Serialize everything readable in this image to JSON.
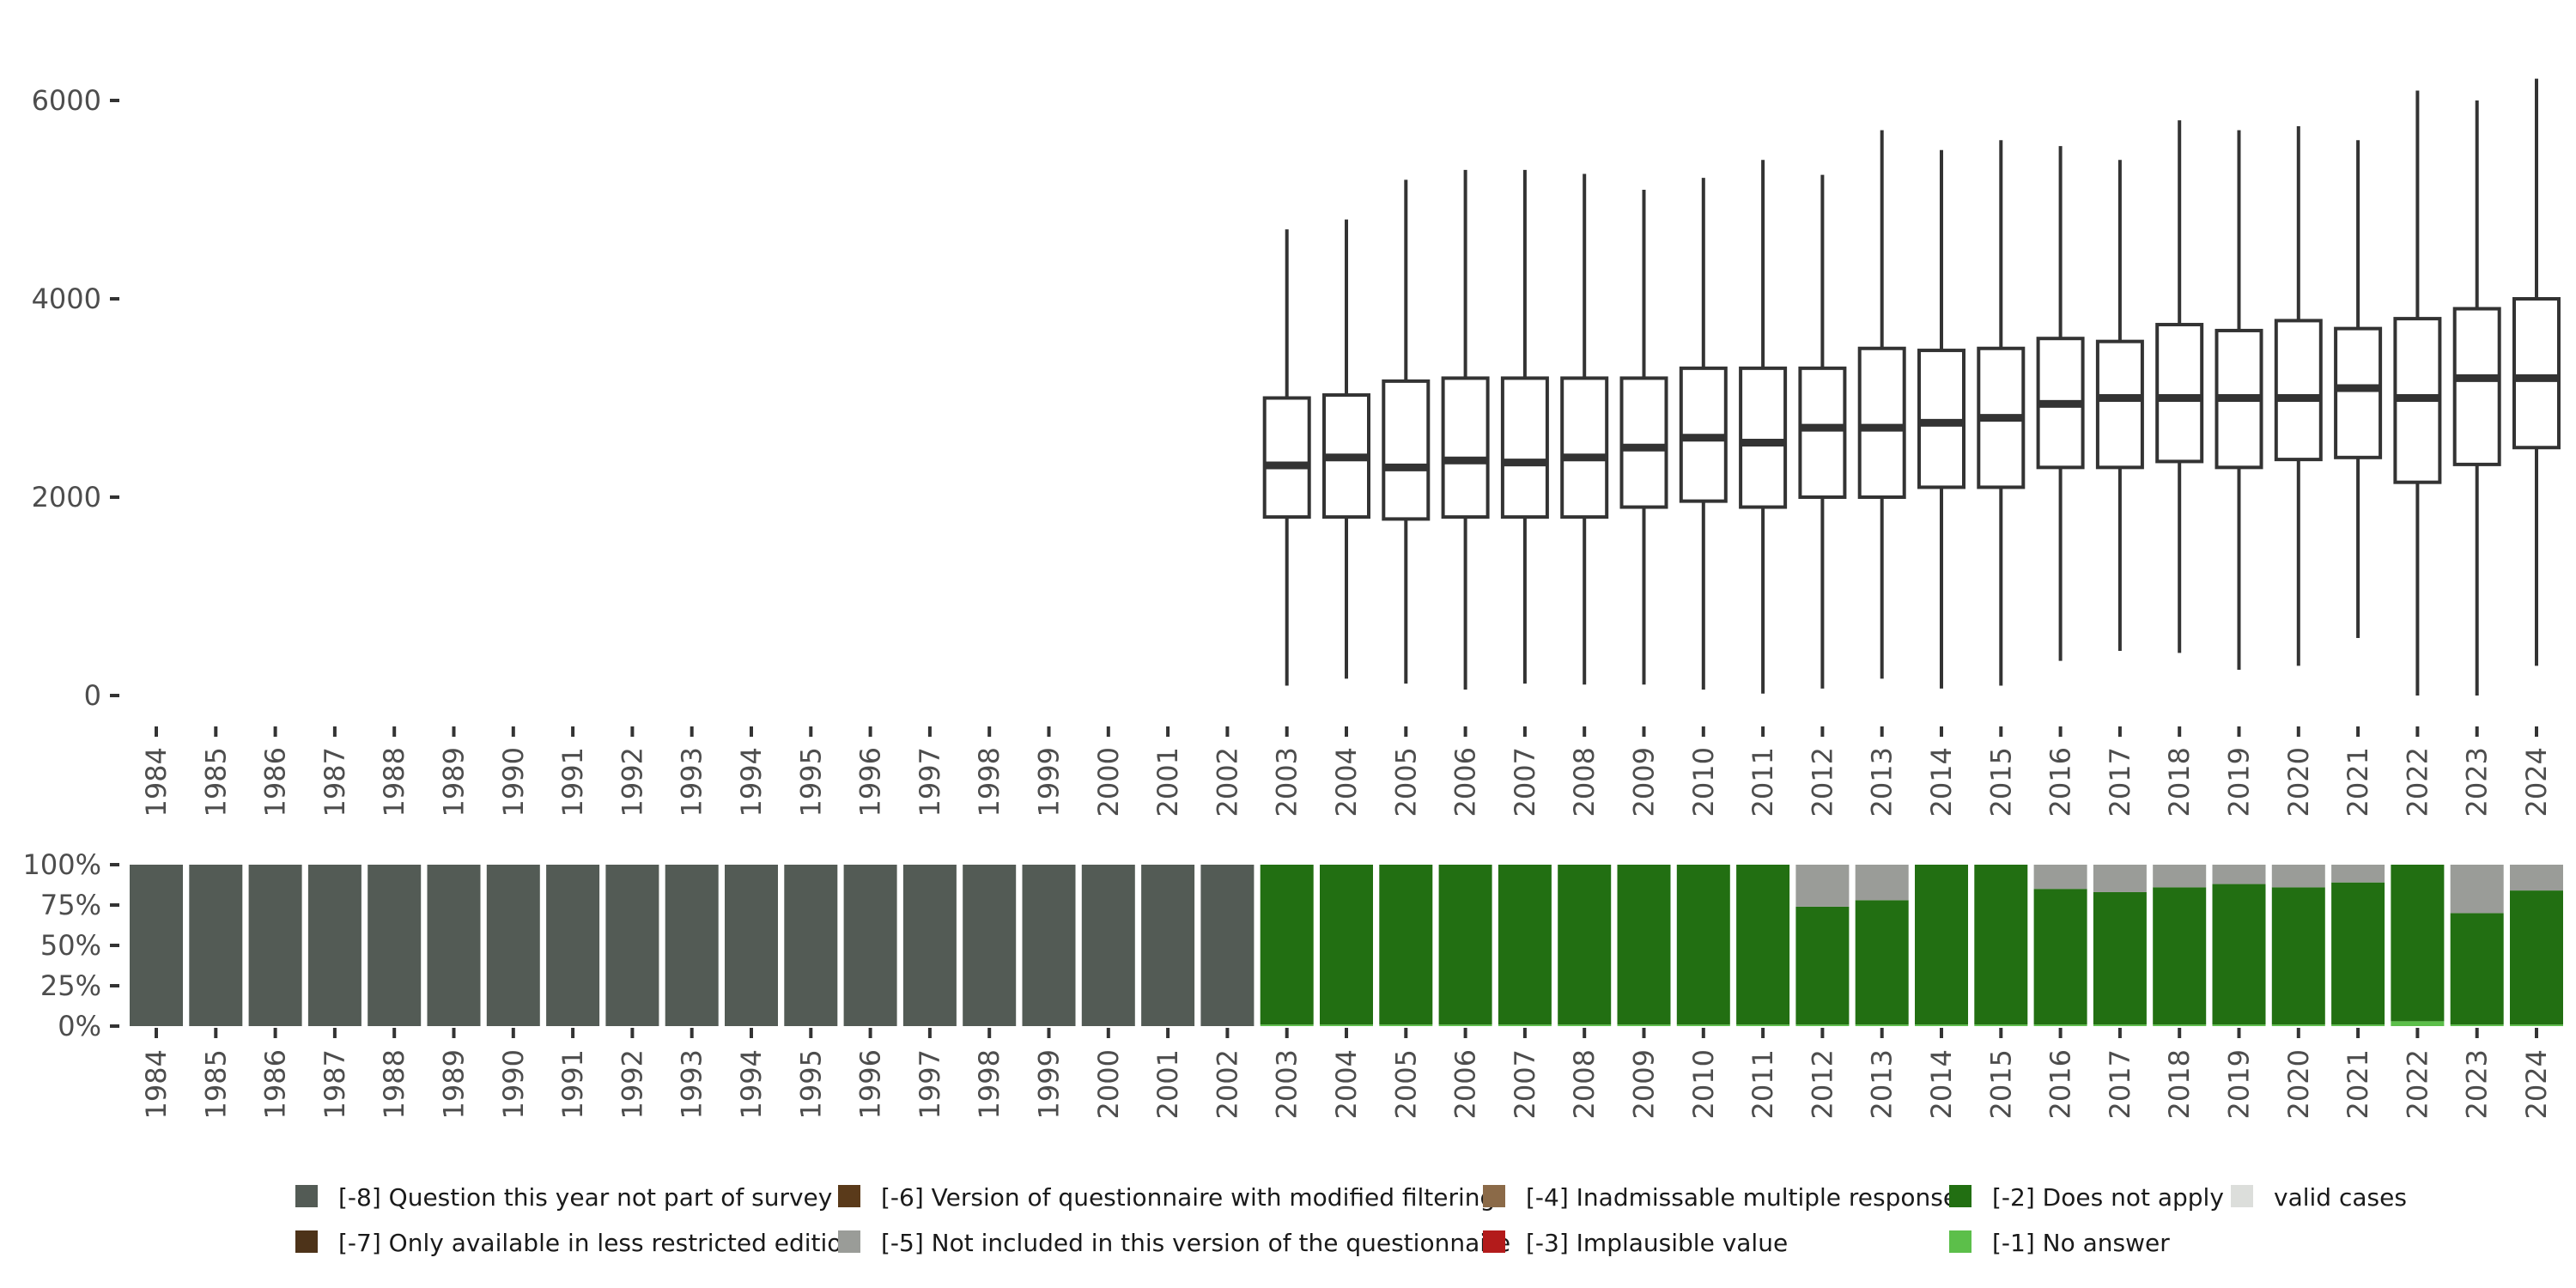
{
  "chart_data": [
    {
      "type": "boxplot",
      "title": "",
      "xlabel": "",
      "ylabel": "",
      "ylim": [
        0,
        6400
      ],
      "y_ticks": [
        0,
        2000,
        4000,
        6000
      ],
      "y_tick_labels": [
        "0",
        "2000",
        "4000",
        "6000"
      ],
      "categories": [
        "1984",
        "1985",
        "1986",
        "1987",
        "1988",
        "1989",
        "1990",
        "1991",
        "1992",
        "1993",
        "1994",
        "1995",
        "1996",
        "1997",
        "1998",
        "1999",
        "2000",
        "2001",
        "2002",
        "2003",
        "2004",
        "2005",
        "2006",
        "2007",
        "2008",
        "2009",
        "2010",
        "2011",
        "2012",
        "2013",
        "2014",
        "2015",
        "2016",
        "2017",
        "2018",
        "2019",
        "2020",
        "2021",
        "2022",
        "2023",
        "2024"
      ],
      "boxes": [
        {
          "year": "2003",
          "min": 100,
          "q1": 1800,
          "median": 2320,
          "q3": 3000,
          "max": 4700
        },
        {
          "year": "2004",
          "min": 170,
          "q1": 1800,
          "median": 2400,
          "q3": 3030,
          "max": 4800
        },
        {
          "year": "2005",
          "min": 120,
          "q1": 1780,
          "median": 2300,
          "q3": 3170,
          "max": 5200
        },
        {
          "year": "2006",
          "min": 60,
          "q1": 1800,
          "median": 2370,
          "q3": 3200,
          "max": 5300
        },
        {
          "year": "2007",
          "min": 120,
          "q1": 1800,
          "median": 2350,
          "q3": 3200,
          "max": 5300
        },
        {
          "year": "2008",
          "min": 110,
          "q1": 1800,
          "median": 2400,
          "q3": 3200,
          "max": 5260
        },
        {
          "year": "2009",
          "min": 110,
          "q1": 1900,
          "median": 2500,
          "q3": 3200,
          "max": 5100
        },
        {
          "year": "2010",
          "min": 60,
          "q1": 1960,
          "median": 2600,
          "q3": 3300,
          "max": 5220
        },
        {
          "year": "2011",
          "min": 20,
          "q1": 1900,
          "median": 2550,
          "q3": 3300,
          "max": 5400
        },
        {
          "year": "2012",
          "min": 70,
          "q1": 2000,
          "median": 2700,
          "q3": 3300,
          "max": 5250
        },
        {
          "year": "2013",
          "min": 170,
          "q1": 2000,
          "median": 2700,
          "q3": 3500,
          "max": 5700
        },
        {
          "year": "2014",
          "min": 70,
          "q1": 2100,
          "median": 2750,
          "q3": 3480,
          "max": 5500
        },
        {
          "year": "2015",
          "min": 100,
          "q1": 2100,
          "median": 2800,
          "q3": 3500,
          "max": 5600
        },
        {
          "year": "2016",
          "min": 350,
          "q1": 2300,
          "median": 2940,
          "q3": 3600,
          "max": 5540
        },
        {
          "year": "2017",
          "min": 450,
          "q1": 2300,
          "median": 3000,
          "q3": 3570,
          "max": 5400
        },
        {
          "year": "2018",
          "min": 430,
          "q1": 2360,
          "median": 3000,
          "q3": 3740,
          "max": 5800
        },
        {
          "year": "2019",
          "min": 260,
          "q1": 2300,
          "median": 3000,
          "q3": 3680,
          "max": 5700
        },
        {
          "year": "2020",
          "min": 300,
          "q1": 2380,
          "median": 3000,
          "q3": 3780,
          "max": 5740
        },
        {
          "year": "2021",
          "min": 580,
          "q1": 2400,
          "median": 3100,
          "q3": 3700,
          "max": 5600
        },
        {
          "year": "2022",
          "min": 0,
          "q1": 2150,
          "median": 3000,
          "q3": 3800,
          "max": 6100
        },
        {
          "year": "2023",
          "min": 0,
          "q1": 2330,
          "median": 3200,
          "q3": 3900,
          "max": 6000
        },
        {
          "year": "2024",
          "min": 300,
          "q1": 2500,
          "median": 3200,
          "q3": 4000,
          "max": 6220
        }
      ]
    },
    {
      "type": "stacked_bar",
      "title": "",
      "ylim": [
        0,
        1
      ],
      "y_ticks": [
        0,
        0.25,
        0.5,
        0.75,
        1.0
      ],
      "y_tick_labels": [
        "0%",
        "25%",
        "50%",
        "75%",
        "100%"
      ],
      "categories": [
        "1984",
        "1985",
        "1986",
        "1987",
        "1988",
        "1989",
        "1990",
        "1991",
        "1992",
        "1993",
        "1994",
        "1995",
        "1996",
        "1997",
        "1998",
        "1999",
        "2000",
        "2001",
        "2002",
        "2003",
        "2004",
        "2005",
        "2006",
        "2007",
        "2008",
        "2009",
        "2010",
        "2011",
        "2012",
        "2013",
        "2014",
        "2015",
        "2016",
        "2017",
        "2018",
        "2019",
        "2020",
        "2021",
        "2022",
        "2023",
        "2024"
      ],
      "series": [
        {
          "name": "[-8] Question this year not part of survey",
          "color": "#535b55",
          "values": [
            1,
            1,
            1,
            1,
            1,
            1,
            1,
            1,
            1,
            1,
            1,
            1,
            1,
            1,
            1,
            1,
            1,
            1,
            1,
            0,
            0,
            0,
            0,
            0,
            0,
            0,
            0,
            0,
            0,
            0,
            0,
            0,
            0,
            0,
            0,
            0,
            0,
            0,
            0,
            0,
            0
          ]
        },
        {
          "name": "[-5] Not included in this version of the questionnaire",
          "color": "#9a9c98",
          "values": [
            0,
            0,
            0,
            0,
            0,
            0,
            0,
            0,
            0,
            0,
            0,
            0,
            0,
            0,
            0,
            0,
            0,
            0,
            0,
            0,
            0,
            0,
            0,
            0,
            0,
            0,
            0,
            0,
            0.26,
            0.22,
            0,
            0,
            0.15,
            0.17,
            0.14,
            0.12,
            0.14,
            0.11,
            0,
            0.3,
            0.16
          ]
        },
        {
          "name": "[-2] Does not apply",
          "color": "#226f12",
          "values": [
            0,
            0,
            0,
            0,
            0,
            0,
            0,
            0,
            0,
            0,
            0,
            0,
            0,
            0,
            0,
            0,
            0,
            0,
            0,
            0.99,
            0.99,
            0.99,
            0.99,
            0.99,
            0.99,
            0.99,
            0.99,
            0.99,
            0.73,
            0.77,
            0.99,
            0.99,
            0.84,
            0.82,
            0.85,
            0.87,
            0.85,
            0.88,
            0.97,
            0.69,
            0.83
          ]
        },
        {
          "name": "[-1] No answer",
          "color": "#5cbf4a",
          "values": [
            0,
            0,
            0,
            0,
            0,
            0,
            0,
            0,
            0,
            0,
            0,
            0,
            0,
            0,
            0,
            0,
            0,
            0,
            0,
            0.01,
            0.01,
            0.01,
            0.01,
            0.01,
            0.01,
            0.01,
            0.01,
            0.01,
            0.01,
            0.01,
            0.01,
            0.01,
            0.01,
            0.01,
            0.01,
            0.01,
            0.01,
            0.01,
            0.03,
            0.01,
            0.01
          ]
        }
      ]
    }
  ],
  "legend": [
    {
      "label": "[-8] Question this year not part of survey",
      "color": "#535b55"
    },
    {
      "label": "[-7] Only available in less restricted edition",
      "color": "#4d3319"
    },
    {
      "label": "[-6] Version of questionnaire with modified filtering",
      "color": "#5a3a1a"
    },
    {
      "label": "[-5] Not included in this version of the questionnaire",
      "color": "#9a9c98"
    },
    {
      "label": "[-4] Inadmissable multiple response",
      "color": "#8b6a48"
    },
    {
      "label": "[-3] Implausible value",
      "color": "#b31b1b"
    },
    {
      "label": "[-2] Does not apply",
      "color": "#226f12"
    },
    {
      "label": "[-1] No answer",
      "color": "#5cbf4a"
    },
    {
      "label": "valid cases",
      "color": "#dcdedb"
    }
  ]
}
